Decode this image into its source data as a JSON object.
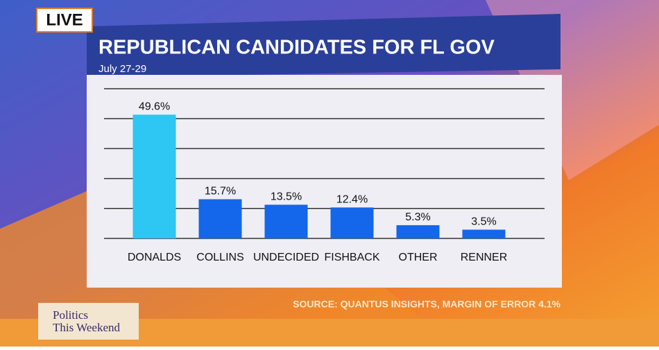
{
  "badge": "LIVE",
  "chart_data": {
    "type": "bar",
    "title": "REPUBLICAN CANDIDATES FOR FL GOV",
    "subtitle": "July 27-29",
    "categories": [
      "DONALDS",
      "COLLINS",
      "UNDECIDED",
      "FISHBACK",
      "OTHER",
      "RENNER"
    ],
    "values": [
      49.6,
      15.7,
      13.5,
      12.4,
      5.3,
      3.5
    ],
    "value_labels": [
      "49.6%",
      "15.7%",
      "13.5%",
      "12.4%",
      "5.3%",
      "3.5%"
    ],
    "colors": [
      "#2ec6f2",
      "#1466ea",
      "#1466ea",
      "#1466ea",
      "#1466ea",
      "#1466ea"
    ],
    "ylim": [
      0,
      60
    ],
    "yticks": [
      0,
      12,
      24,
      36,
      48,
      60
    ],
    "grid": true,
    "source": "SOURCE: QUANTUS INSIGHTS, MARGIN OF ERROR 4.1%"
  },
  "show": {
    "line1": "Politics",
    "line2": "This Weekend"
  }
}
